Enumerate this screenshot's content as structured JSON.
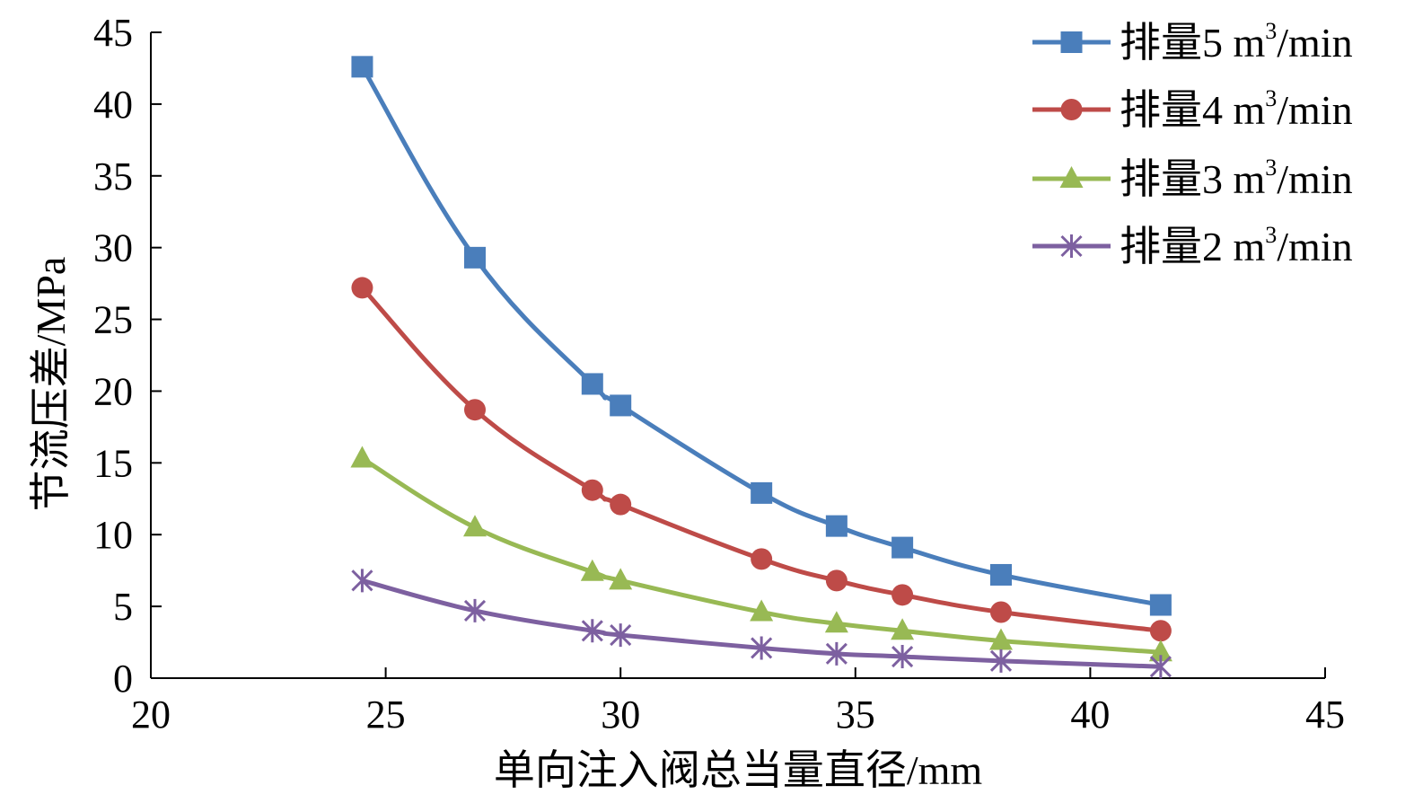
{
  "chart_data": {
    "type": "line",
    "title": "",
    "xlabel": "单向注入阀总当量直径/mm",
    "ylabel": "节流压差/MPa",
    "xlim": [
      20,
      45
    ],
    "ylim": [
      0,
      45
    ],
    "xticks": [
      20,
      25,
      30,
      35,
      40,
      45
    ],
    "yticks": [
      0,
      5,
      10,
      15,
      20,
      25,
      30,
      35,
      40,
      45
    ],
    "grid": false,
    "legend_position": "top-right",
    "x": [
      24.5,
      26.9,
      29.4,
      30.0,
      33.0,
      34.6,
      36.0,
      38.1,
      41.5
    ],
    "series": [
      {
        "name": "排量5 m³/min",
        "legend": {
          "prefix": "排量5 m",
          "sup": "3",
          "suffix": "/min"
        },
        "marker": "square",
        "color": "#4a7ebb",
        "values": [
          42.6,
          29.3,
          20.5,
          19.0,
          12.9,
          10.6,
          9.1,
          7.2,
          5.1
        ]
      },
      {
        "name": "排量4 m³/min",
        "legend": {
          "prefix": "排量4 m",
          "sup": "3",
          "suffix": "/min"
        },
        "marker": "circle",
        "color": "#be4b48",
        "values": [
          27.2,
          18.7,
          13.1,
          12.1,
          8.3,
          6.8,
          5.8,
          4.6,
          3.3
        ]
      },
      {
        "name": "排量3 m³/min",
        "legend": {
          "prefix": "排量3 m",
          "sup": "3",
          "suffix": "/min"
        },
        "marker": "triangle",
        "color": "#98b954",
        "values": [
          15.3,
          10.5,
          7.4,
          6.8,
          4.6,
          3.8,
          3.3,
          2.6,
          1.8
        ]
      },
      {
        "name": "排量2 m³/min",
        "legend": {
          "prefix": "排量2 m",
          "sup": "3",
          "suffix": "/min"
        },
        "marker": "star",
        "color": "#7d60a0",
        "values": [
          6.8,
          4.7,
          3.3,
          3.0,
          2.1,
          1.7,
          1.5,
          1.2,
          0.8
        ]
      }
    ]
  }
}
